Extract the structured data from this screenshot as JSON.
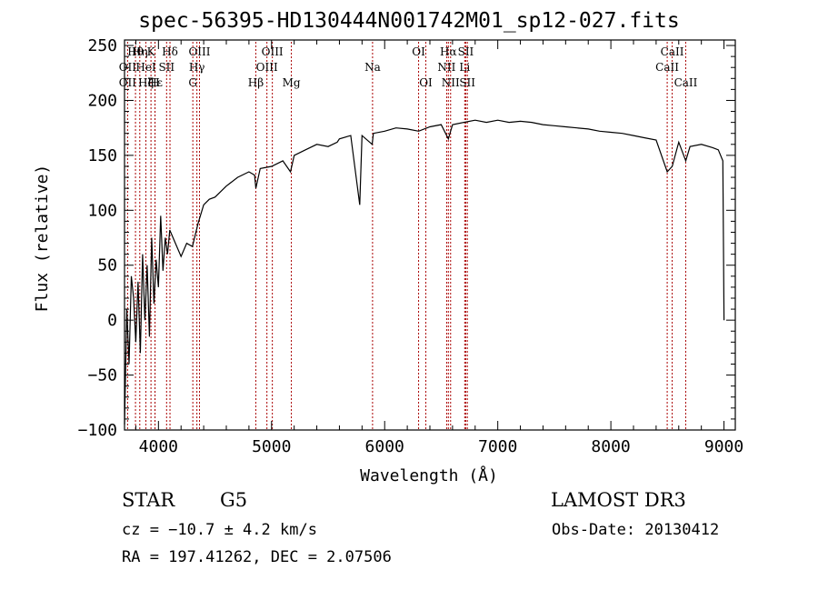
{
  "chart_data": {
    "type": "line",
    "title": "spec-56395-HD130444N001742M01_sp12-027.fits",
    "xlabel": "Wavelength (Å)",
    "ylabel": "Flux (relative)",
    "xlim": [
      3700,
      9100
    ],
    "ylim": [
      -100,
      255
    ],
    "xticks": [
      4000,
      5000,
      6000,
      7000,
      8000,
      9000
    ],
    "yticks": [
      -100,
      -50,
      0,
      50,
      100,
      150,
      200,
      250
    ],
    "grid": false,
    "line_color": "#000000",
    "marker_color": "#aa0000",
    "series": [
      {
        "x": [
          3700,
          3720,
          3740,
          3760,
          3780,
          3800,
          3820,
          3840,
          3860,
          3880,
          3900,
          3920,
          3940,
          3960,
          3980,
          4000,
          4020,
          4040,
          4060,
          4080,
          4100,
          4150,
          4200,
          4250,
          4300,
          4350,
          4400,
          4450,
          4500,
          4600,
          4700,
          4800,
          4850,
          4861,
          4900,
          5000,
          5100,
          5167,
          5200,
          5300,
          5400,
          5500,
          5580,
          5600,
          5700,
          5780,
          5800,
          5890,
          5900,
          6000,
          6100,
          6200,
          6300,
          6400,
          6500,
          6563,
          6600,
          6700,
          6800,
          6900,
          7000,
          7100,
          7200,
          7300,
          7400,
          7500,
          7600,
          7700,
          7800,
          7900,
          8000,
          8100,
          8200,
          8300,
          8400,
          8498,
          8542,
          8600,
          8662,
          8700,
          8800,
          8900,
          8950,
          8990,
          9000
        ],
        "y": [
          -95,
          10,
          -40,
          40,
          20,
          -20,
          35,
          -30,
          60,
          0,
          50,
          -15,
          75,
          15,
          55,
          30,
          95,
          45,
          75,
          60,
          82,
          70,
          58,
          70,
          67,
          88,
          105,
          110,
          112,
          122,
          130,
          135,
          132,
          120,
          138,
          140,
          145,
          135,
          150,
          155,
          160,
          158,
          162,
          165,
          168,
          105,
          168,
          160,
          170,
          172,
          175,
          174,
          172,
          176,
          178,
          165,
          178,
          180,
          182,
          180,
          182,
          180,
          181,
          180,
          178,
          177,
          176,
          175,
          174,
          172,
          171,
          170,
          168,
          166,
          164,
          135,
          140,
          162,
          145,
          158,
          160,
          157,
          155,
          145,
          0
        ]
      }
    ],
    "lines": [
      {
        "x": 3727,
        "label": "OII",
        "row": 1
      },
      {
        "x": 3727,
        "label": "OII",
        "row": 2
      },
      {
        "x": 3797,
        "label": "Hθ",
        "row": 0
      },
      {
        "x": 3835,
        "label": "Hη",
        "row": 0
      },
      {
        "x": 3889,
        "label": "HeI",
        "row": 1
      },
      {
        "x": 3889,
        "label": "Hζ",
        "row": 2
      },
      {
        "x": 3934,
        "label": "K",
        "row": 0
      },
      {
        "x": 3969,
        "label": "H",
        "row": 2
      },
      {
        "x": 3970,
        "label": "Hε",
        "row": 2
      },
      {
        "x": 4072,
        "label": "SII",
        "row": 1
      },
      {
        "x": 4102,
        "label": "Hδ",
        "row": 0
      },
      {
        "x": 4304,
        "label": "G",
        "row": 2
      },
      {
        "x": 4340,
        "label": "Hγ",
        "row": 1
      },
      {
        "x": 4363,
        "label": "OIII",
        "row": 0
      },
      {
        "x": 4861,
        "label": "Hβ",
        "row": 2
      },
      {
        "x": 4959,
        "label": "OIII",
        "row": 1
      },
      {
        "x": 5007,
        "label": "OIII",
        "row": 0
      },
      {
        "x": 5175,
        "label": "Mg",
        "row": 2
      },
      {
        "x": 5893,
        "label": "Na",
        "row": 1
      },
      {
        "x": 6300,
        "label": "OI",
        "row": 0
      },
      {
        "x": 6364,
        "label": "OI",
        "row": 2
      },
      {
        "x": 6548,
        "label": "NII",
        "row": 1
      },
      {
        "x": 6563,
        "label": "Hα",
        "row": 0
      },
      {
        "x": 6583,
        "label": "NII",
        "row": 2
      },
      {
        "x": 6708,
        "label": "Li",
        "row": 1
      },
      {
        "x": 6717,
        "label": "SII",
        "row": 0
      },
      {
        "x": 6731,
        "label": "SII",
        "row": 2
      },
      {
        "x": 8498,
        "label": "CaII",
        "row": 1
      },
      {
        "x": 8542,
        "label": "CaII",
        "row": 0
      },
      {
        "x": 8662,
        "label": "CaII",
        "row": 2
      }
    ]
  },
  "info": {
    "object_class": "STAR",
    "subclass": "G5",
    "survey": "LAMOST DR3",
    "redshift": "cz = −10.7 ± 4.2 km/s",
    "obs_date": "Obs-Date: 20130412",
    "coords": "RA = 197.41262, DEC =    2.07506"
  }
}
